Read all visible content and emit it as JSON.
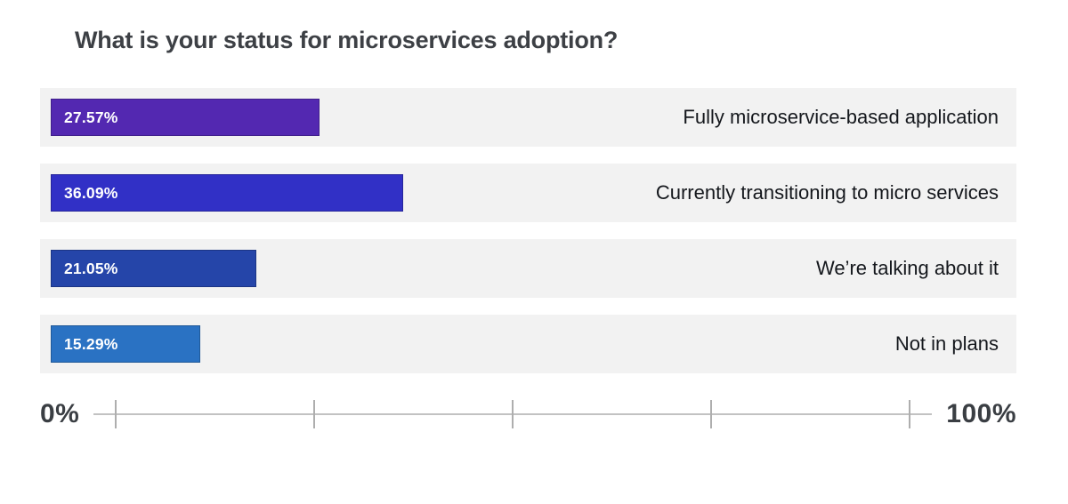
{
  "title": "What is your status for microservices adoption?",
  "colors": {
    "page_background": "#ffffff",
    "row_background": "#f2f2f2",
    "title_text": "#3d4045",
    "category_text": "#14171c",
    "value_text": "#ffffff",
    "axis_text": "#3a3e43",
    "axis_line": "#c2c2c2"
  },
  "chart_data": {
    "type": "bar",
    "orientation": "horizontal",
    "title": "What is your status for microservices adoption?",
    "categories": [
      "Fully microservice-based application",
      "Currently transitioning to micro services",
      "We’re talking about it",
      "Not in plans"
    ],
    "values": [
      27.57,
      36.09,
      21.05,
      15.29
    ],
    "value_labels": [
      "27.57%",
      "36.09%",
      "21.05%",
      "15.29%"
    ],
    "bar_colors": [
      "#5328b1",
      "#3130c6",
      "#2545a9",
      "#2a72c3"
    ],
    "xlabel": "",
    "ylabel": "",
    "xlim": [
      0,
      100
    ],
    "grid": false,
    "legend": false,
    "axis": {
      "min_label": "0%",
      "max_label": "100%",
      "tick_count": 5,
      "tick_positions": [
        0,
        25,
        50,
        75,
        100
      ]
    }
  }
}
